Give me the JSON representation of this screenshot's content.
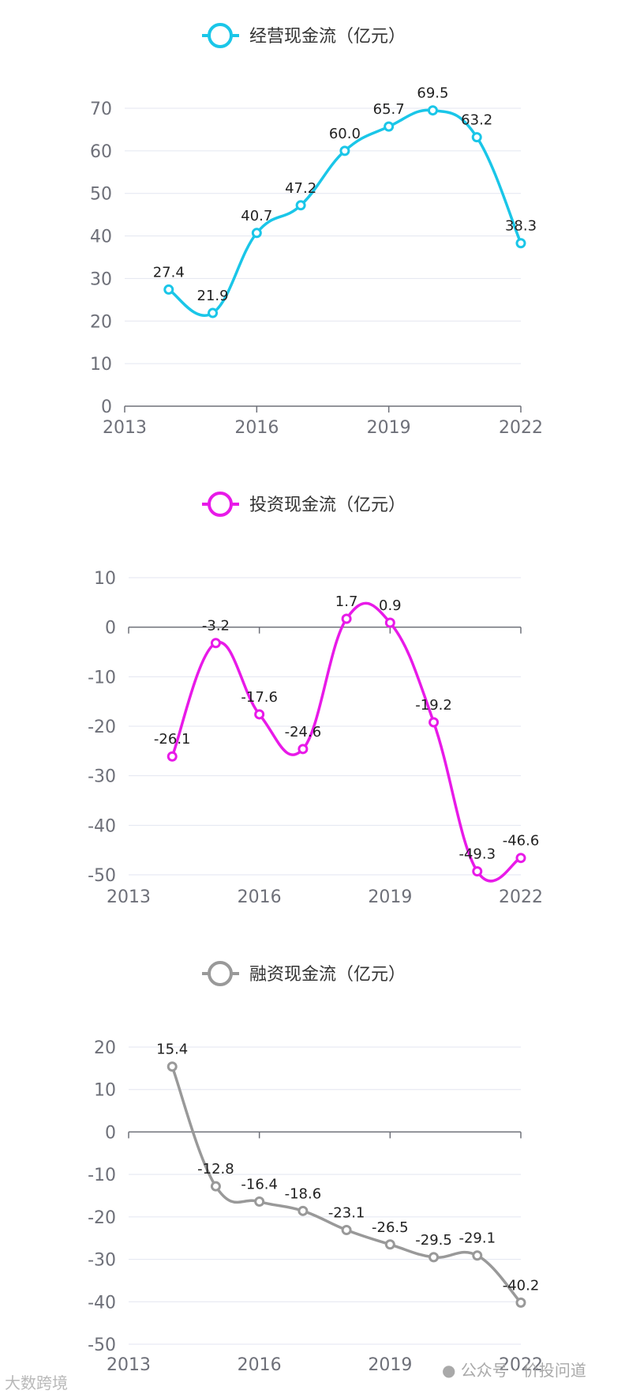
{
  "chart_data": [
    {
      "type": "line",
      "legend": "经营现金流（亿元）",
      "color": "#1ac6e8",
      "x": [
        2014,
        2015,
        2016,
        2017,
        2018,
        2019,
        2020,
        2021,
        2022
      ],
      "values": [
        27.4,
        21.9,
        40.7,
        47.2,
        60.0,
        65.7,
        69.5,
        63.2,
        38.3
      ],
      "labels": [
        "27.4",
        "21.9",
        "40.7",
        "47.2",
        "60.0",
        "65.7",
        "69.5",
        "63.2",
        "38.3"
      ],
      "xlim": [
        2013,
        2022
      ],
      "xticks": [
        "2013",
        "2016",
        "2019",
        "2022"
      ],
      "ylim": [
        0,
        70
      ],
      "yticks": [
        "0",
        "10",
        "20",
        "30",
        "40",
        "50",
        "60",
        "70"
      ],
      "legend_position": "top-center"
    },
    {
      "type": "line",
      "legend": "投资现金流（亿元）",
      "color": "#e81ae8",
      "x": [
        2014,
        2015,
        2016,
        2017,
        2018,
        2019,
        2020,
        2021,
        2022
      ],
      "values": [
        -26.1,
        -3.2,
        -17.6,
        -24.6,
        1.7,
        0.9,
        -19.2,
        -49.3,
        -46.6
      ],
      "labels": [
        "-26.1",
        "-3.2",
        "-17.6",
        "-24.6",
        "1.7",
        "0.9",
        "-19.2",
        "-49.3",
        "-46.6"
      ],
      "xlim": [
        2013,
        2022
      ],
      "xticks": [
        "2013",
        "2016",
        "2019",
        "2022"
      ],
      "ylim": [
        -50,
        10
      ],
      "yticks": [
        "-50",
        "-40",
        "-30",
        "-20",
        "-10",
        "0",
        "10"
      ],
      "legend_position": "top-center"
    },
    {
      "type": "line",
      "legend": "融资现金流（亿元）",
      "color": "#999999",
      "x": [
        2014,
        2015,
        2016,
        2017,
        2018,
        2019,
        2020,
        2021,
        2022
      ],
      "values": [
        15.4,
        -12.8,
        -16.4,
        -18.6,
        -23.1,
        -26.5,
        -29.5,
        -29.1,
        -40.2
      ],
      "labels": [
        "15.4",
        "-12.8",
        "-16.4",
        "-18.6",
        "-23.1",
        "-26.5",
        "-29.5",
        "-29.1",
        "-40.2"
      ],
      "xlim": [
        2013,
        2022
      ],
      "xticks": [
        "2013",
        "2016",
        "2019",
        "2022"
      ],
      "ylim": [
        -50,
        20
      ],
      "yticks": [
        "-50",
        "-40",
        "-30",
        "-20",
        "-10",
        "0",
        "10",
        "20"
      ],
      "legend_position": "top-center"
    }
  ],
  "watermarks": {
    "left": "大数跨境",
    "right": "公众号 · 价投问道"
  }
}
